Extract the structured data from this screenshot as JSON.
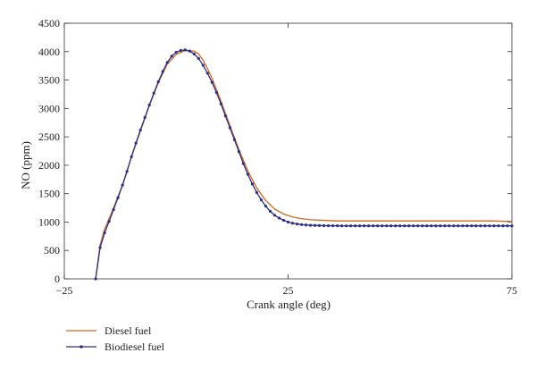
{
  "chart_data": {
    "type": "line",
    "title": "",
    "xlabel": "Crank angle (deg)",
    "ylabel": "NO (ppm)",
    "xlim": [
      -25,
      75
    ],
    "ylim": [
      0,
      4500
    ],
    "xticks": [
      -25,
      25,
      75
    ],
    "yticks": [
      0,
      500,
      1000,
      1500,
      2000,
      2500,
      3000,
      3500,
      4000,
      4500
    ],
    "legend_position": "bottom-left",
    "grid": false,
    "series": [
      {
        "name": "Diesel fuel",
        "color": "#d2691e",
        "marker": "none",
        "x": [
          -18,
          -17,
          -16,
          -14,
          -12,
          -10,
          -8,
          -6,
          -4,
          -2,
          0,
          2,
          4,
          5,
          6,
          7,
          8,
          10,
          12,
          14,
          16,
          18,
          20,
          22,
          24,
          26,
          28,
          30,
          33,
          36,
          40,
          45,
          50,
          55,
          60,
          65,
          70,
          75
        ],
        "y": [
          0,
          600,
          870,
          1250,
          1650,
          2150,
          2600,
          3050,
          3450,
          3780,
          3950,
          4020,
          4010,
          3960,
          3850,
          3700,
          3530,
          3130,
          2700,
          2280,
          1900,
          1600,
          1380,
          1230,
          1140,
          1090,
          1060,
          1040,
          1030,
          1020,
          1020,
          1020,
          1020,
          1020,
          1020,
          1020,
          1020,
          1010
        ]
      },
      {
        "name": "Biodiesel fuel",
        "color": "#2b2f8a",
        "marker": "dot",
        "x": [
          -18,
          -17,
          -16,
          -15,
          -14,
          -13,
          -12,
          -11,
          -10,
          -9,
          -8,
          -7,
          -6,
          -5,
          -4,
          -3,
          -2,
          -1,
          0,
          1,
          2,
          3,
          4,
          5,
          6,
          7,
          8,
          9,
          10,
          11,
          12,
          13,
          14,
          15,
          16,
          17,
          18,
          19,
          20,
          21,
          22,
          23,
          24,
          25,
          26,
          27,
          28,
          29,
          30,
          31,
          32,
          33,
          34,
          35,
          36,
          37,
          38,
          39,
          40,
          41,
          42,
          43,
          44,
          45,
          46,
          47,
          48,
          49,
          50,
          51,
          52,
          53,
          54,
          55,
          56,
          57,
          58,
          59,
          60,
          61,
          62,
          63,
          64,
          65,
          66,
          67,
          68,
          69,
          70,
          71,
          72,
          73,
          74,
          75
        ],
        "y": [
          0,
          550,
          810,
          1010,
          1220,
          1430,
          1650,
          1890,
          2150,
          2390,
          2620,
          2840,
          3060,
          3270,
          3470,
          3650,
          3810,
          3920,
          3990,
          4020,
          4030,
          4010,
          3960,
          3880,
          3760,
          3620,
          3460,
          3280,
          3080,
          2870,
          2660,
          2450,
          2240,
          2030,
          1840,
          1670,
          1520,
          1390,
          1280,
          1190,
          1120,
          1070,
          1030,
          1000,
          980,
          965,
          955,
          948,
          943,
          940,
          938,
          936,
          935,
          934,
          934,
          933,
          933,
          933,
          933,
          933,
          933,
          933,
          933,
          933,
          933,
          933,
          933,
          933,
          933,
          933,
          933,
          933,
          933,
          933,
          933,
          933,
          933,
          933,
          933,
          933,
          933,
          933,
          933,
          933,
          933,
          933,
          933,
          933,
          933,
          933,
          933,
          933,
          933,
          933
        ]
      }
    ]
  }
}
